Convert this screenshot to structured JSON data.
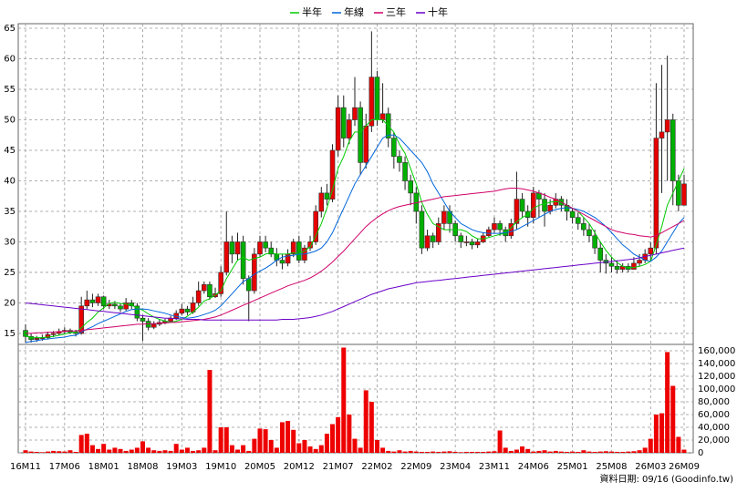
{
  "chart_data": {
    "type": "candlestick",
    "categories": [
      "16M11",
      null,
      null,
      null,
      null,
      null,
      null,
      "17M06",
      null,
      null,
      null,
      null,
      null,
      null,
      "18M01",
      null,
      null,
      null,
      null,
      null,
      null,
      "18M08",
      null,
      null,
      null,
      null,
      null,
      null,
      "19M03",
      null,
      null,
      null,
      null,
      null,
      null,
      "19M10",
      null,
      null,
      null,
      null,
      null,
      null,
      "20M05",
      null,
      null,
      null,
      null,
      null,
      null,
      "20M12",
      null,
      null,
      null,
      null,
      null,
      null,
      "21M07",
      null,
      null,
      null,
      null,
      null,
      null,
      "22M02",
      null,
      null,
      null,
      null,
      null,
      null,
      "22M09",
      null,
      null,
      null,
      null,
      null,
      null,
      "23M04",
      null,
      null,
      null,
      null,
      null,
      null,
      "23M11",
      null,
      null,
      null,
      null,
      null,
      null,
      "24M06",
      null,
      null,
      null,
      null,
      null,
      null,
      "25M01",
      null,
      null,
      null,
      null,
      null,
      null,
      "25M08",
      null,
      null,
      null,
      null,
      null,
      null,
      "26M03",
      null,
      null,
      null,
      null,
      null,
      "26M09"
    ],
    "open": [
      15.5,
      14.5,
      14,
      14.2,
      14.3,
      14.8,
      15,
      15.3,
      15.5,
      15.2,
      15,
      19.5,
      20.5,
      20,
      21,
      19.5,
      19.8,
      19.5,
      19,
      20,
      19.5,
      17.5,
      17,
      16,
      16.5,
      16.8,
      17,
      17.5,
      18.3,
      19,
      18.5,
      20,
      22,
      23,
      21,
      21.5,
      25,
      30,
      28,
      30,
      24,
      22,
      28,
      30,
      29,
      28,
      27,
      26.5,
      28,
      30,
      27,
      29,
      30,
      35,
      38,
      37,
      45,
      52,
      47,
      50,
      52,
      43,
      49,
      57,
      50,
      51,
      47,
      44,
      43,
      40,
      38,
      35,
      29,
      31,
      30,
      33,
      35,
      33,
      31,
      30,
      30,
      29.5,
      30,
      31,
      32,
      33,
      32,
      31,
      33,
      37,
      35,
      34,
      38,
      37,
      35,
      36,
      37,
      36,
      35,
      34,
      33,
      32,
      31,
      29,
      27,
      26.5,
      26,
      25.5,
      26,
      25.5,
      26.5,
      27,
      28,
      29,
      47,
      48,
      50,
      40,
      36
    ],
    "high": [
      16.5,
      15,
      14.6,
      14.8,
      15.2,
      15.4,
      15.8,
      16,
      15.8,
      15.6,
      21,
      22,
      21.5,
      21.5,
      21.2,
      20.5,
      20.3,
      20,
      20.8,
      20.5,
      20,
      18,
      17.5,
      17,
      17.3,
      17.4,
      17.9,
      18.8,
      19.8,
      19.5,
      21,
      23.5,
      23.5,
      23.5,
      22.5,
      26,
      35,
      31,
      31.5,
      31,
      24.5,
      29,
      31,
      31,
      30,
      29,
      28,
      28.8,
      30.5,
      31,
      29.5,
      31,
      36,
      39,
      39.5,
      46,
      54,
      54,
      51,
      57,
      53,
      51,
      64.5,
      58,
      56,
      52,
      48,
      45,
      44,
      41,
      39,
      36,
      32,
      31.5,
      34,
      36,
      36,
      33.5,
      31.5,
      31,
      30.5,
      30.5,
      31.5,
      32.5,
      34,
      33.5,
      32.5,
      33.8,
      41.5,
      38,
      36,
      39,
      38.5,
      38,
      37,
      38,
      37.5,
      37,
      35.5,
      34.8,
      34,
      33,
      32,
      30,
      28,
      27.5,
      27,
      26.5,
      26.5,
      27.5,
      28,
      28.8,
      30,
      56,
      59,
      60.5,
      51,
      41,
      41
    ],
    "low": [
      13.5,
      13.5,
      13.6,
      13.8,
      14,
      14.4,
      14.7,
      14.9,
      14.9,
      14.5,
      14.8,
      19,
      19.3,
      19.5,
      19,
      19,
      19,
      18.5,
      18.7,
      19,
      17,
      13.8,
      15.5,
      15.7,
      16.2,
      16.5,
      16.8,
      17.2,
      18,
      18,
      18.2,
      19.5,
      21.5,
      20.5,
      20.8,
      21,
      24.5,
      26.5,
      27,
      23,
      17,
      21.5,
      27.5,
      28.3,
      27.5,
      26,
      25.5,
      26,
      27.5,
      26.5,
      26.5,
      28.5,
      29.5,
      34,
      36,
      36.5,
      44,
      45.5,
      46,
      49,
      41,
      42,
      48,
      49,
      49.5,
      45.5,
      42,
      41.5,
      38.5,
      36,
      33,
      28,
      28.5,
      29,
      29.5,
      32,
      31.5,
      30,
      29,
      29.3,
      28.8,
      29,
      29.8,
      30.8,
      31.5,
      31,
      30,
      30.5,
      32,
      34,
      32.5,
      33,
      34,
      32.5,
      34.5,
      35.5,
      35,
      33.5,
      33,
      32,
      31,
      30,
      28,
      25,
      24.8,
      25,
      24.8,
      25,
      25,
      25.5,
      26,
      26.5,
      27,
      28,
      38,
      40,
      36,
      35,
      36
    ],
    "close": [
      14.5,
      14,
      14.2,
      14.3,
      14.8,
      15,
      15.3,
      15.5,
      15.2,
      15,
      19.5,
      20.5,
      20,
      21,
      19.5,
      19.8,
      19.5,
      19,
      20,
      19.5,
      17.5,
      17,
      16,
      16.5,
      16.8,
      17,
      17.5,
      18.3,
      19,
      18.5,
      20,
      22,
      23,
      21,
      21.5,
      25,
      30,
      28,
      30,
      24,
      22,
      28,
      30,
      29,
      28,
      27,
      26.5,
      28,
      30,
      27,
      29,
      30,
      35,
      38,
      37,
      45,
      52,
      47,
      50,
      52,
      43,
      49,
      57,
      50,
      51,
      47,
      44,
      43,
      40,
      38,
      35,
      29,
      31,
      30,
      33,
      35,
      33,
      31,
      30,
      30,
      29.5,
      30,
      31,
      32,
      33,
      32,
      31,
      33,
      37,
      35,
      34,
      38,
      37,
      35,
      36,
      37,
      36,
      35,
      34,
      33,
      32,
      31,
      29,
      27,
      26.5,
      26,
      25.5,
      26,
      25.5,
      26.5,
      27,
      28,
      29,
      47,
      48,
      50,
      40,
      36,
      39.5
    ],
    "up_color": "#e60000",
    "down_color": "#00b000",
    "ylim": [
      13.2,
      65.75
    ],
    "yticks": [
      15,
      20,
      25,
      30,
      35,
      40,
      45,
      50,
      55,
      60,
      65
    ],
    "grid": true,
    "series": [
      {
        "name": "半年",
        "color": "#00cc00",
        "values": [
          14.5,
          14.4,
          14.3,
          14.3,
          14.4,
          14.5,
          14.7,
          14.9,
          15.1,
          15.2,
          15.9,
          16.8,
          17.5,
          18.5,
          19.2,
          19.9,
          20.1,
          19.9,
          19.8,
          19.6,
          19.2,
          18.8,
          18.2,
          17.7,
          17.3,
          17,
          16.8,
          17,
          17.3,
          17.8,
          18.5,
          19.3,
          20.3,
          20.7,
          21.3,
          22,
          24,
          25.5,
          27,
          27.5,
          27,
          27.3,
          27.5,
          28,
          28.2,
          28,
          28,
          28,
          28.2,
          28,
          28.5,
          29.2,
          31,
          33,
          35.5,
          38.5,
          42,
          44,
          46.5,
          48,
          48,
          49,
          50,
          50,
          50,
          49,
          48,
          46,
          44.5,
          42,
          39.5,
          36.5,
          34.5,
          33,
          32.5,
          32,
          32,
          32,
          32,
          31.7,
          31,
          30.5,
          30.5,
          30.7,
          31,
          31.2,
          31.5,
          32.3,
          33.3,
          34,
          34.5,
          35.5,
          36,
          36.2,
          36.5,
          36.6,
          36.5,
          36,
          35.5,
          35,
          34,
          33,
          31.5,
          30,
          28.6,
          27.5,
          26.6,
          26,
          25.8,
          25.8,
          26,
          26.3,
          26.8,
          29.5,
          32.5,
          36,
          38,
          40,
          42
        ]
      },
      {
        "name": "年線",
        "color": "#0066dd",
        "values": [
          13.5,
          13.7,
          13.8,
          14,
          14.1,
          14.2,
          14.3,
          14.4,
          14.6,
          14.7,
          15.2,
          15.7,
          16.1,
          16.6,
          17,
          17.4,
          17.8,
          18.2,
          18.6,
          18.9,
          19,
          19,
          18.9,
          18.7,
          18.5,
          18.3,
          18,
          17.8,
          17.6,
          17.5,
          17.6,
          17.8,
          18.1,
          18.4,
          18.8,
          19.5,
          20.5,
          21.5,
          22.5,
          23.5,
          24,
          24.7,
          25.2,
          25.7,
          26.3,
          27,
          27.5,
          27.7,
          27.8,
          28,
          28,
          28.2,
          28.5,
          29,
          30,
          31.5,
          33.5,
          35.5,
          37.5,
          39.5,
          41,
          42.5,
          44,
          45.5,
          47,
          47.5,
          47.5,
          47,
          46,
          45,
          44,
          43,
          41.5,
          39.5,
          38,
          36.5,
          35,
          34,
          33,
          32.5,
          32,
          31.7,
          31.5,
          31.4,
          31.4,
          31.4,
          31.5,
          31.7,
          32,
          32.5,
          33,
          33.5,
          34,
          34.5,
          35,
          35.3,
          35.5,
          35.6,
          35.5,
          35.3,
          35,
          34.5,
          34,
          33.3,
          32.5,
          31.5,
          30.5,
          29.5,
          28.8,
          28,
          27.5,
          27,
          26.8,
          27.5,
          28.5,
          30,
          31.5,
          33,
          34
        ]
      },
      {
        "name": "三年",
        "color": "#d0006a",
        "values": [
          15,
          15,
          15.1,
          15.1,
          15.2,
          15.2,
          15.3,
          15.3,
          15.4,
          15.4,
          15.5,
          15.6,
          15.7,
          15.8,
          15.9,
          16,
          16.1,
          16.2,
          16.3,
          16.4,
          16.5,
          16.5,
          16.6,
          16.6,
          16.7,
          16.7,
          16.8,
          16.8,
          16.9,
          17,
          17.1,
          17.2,
          17.3,
          17.5,
          17.7,
          18,
          18.4,
          18.8,
          19.2,
          19.6,
          20,
          20.4,
          20.8,
          21.2,
          21.6,
          22,
          22.4,
          22.8,
          23.1,
          23.4,
          23.7,
          24.1,
          24.6,
          25.2,
          25.9,
          26.7,
          27.6,
          28.5,
          29.5,
          30.5,
          31.5,
          32.5,
          33.3,
          34,
          34.6,
          35.1,
          35.5,
          35.8,
          36,
          36.2,
          36.4,
          36.6,
          36.8,
          37,
          37.2,
          37.4,
          37.5,
          37.6,
          37.7,
          37.8,
          37.9,
          38,
          38.1,
          38.2,
          38.3,
          38.5,
          38.7,
          38.8,
          38.8,
          38.7,
          38.5,
          38.3,
          38,
          37.7,
          37.3,
          37,
          36.5,
          36,
          35.5,
          35,
          34.5,
          34,
          33.5,
          33,
          32.5,
          32,
          31.7,
          31.5,
          31.3,
          31.2,
          31,
          30.9,
          30.8,
          31,
          31.5,
          32,
          32.5,
          33,
          33.5
        ]
      },
      {
        "name": "十年",
        "color": "#6a00c8",
        "values": [
          20,
          19.9,
          19.8,
          19.7,
          19.6,
          19.5,
          19.4,
          19.3,
          19.2,
          19.1,
          19,
          18.9,
          18.8,
          18.7,
          18.6,
          18.5,
          18.4,
          18.3,
          18.2,
          18.1,
          18,
          17.9,
          17.8,
          17.7,
          17.6,
          17.5,
          17.5,
          17.4,
          17.4,
          17.3,
          17.3,
          17.3,
          17.2,
          17.2,
          17.2,
          17.2,
          17.2,
          17.2,
          17.2,
          17.2,
          17.2,
          17.2,
          17.2,
          17.2,
          17.2,
          17.2,
          17.3,
          17.3,
          17.3,
          17.4,
          17.5,
          17.6,
          17.8,
          18,
          18.3,
          18.6,
          19,
          19.4,
          19.8,
          20.2,
          20.6,
          21,
          21.4,
          21.7,
          22,
          22.3,
          22.5,
          22.7,
          22.9,
          23.1,
          23.3,
          23.4,
          23.5,
          23.6,
          23.7,
          23.8,
          23.9,
          24,
          24.1,
          24.2,
          24.3,
          24.4,
          24.5,
          24.6,
          24.7,
          24.8,
          24.9,
          25,
          25.1,
          25.2,
          25.3,
          25.4,
          25.5,
          25.6,
          25.7,
          25.8,
          25.9,
          26,
          26.1,
          26.2,
          26.3,
          26.4,
          26.5,
          26.6,
          26.7,
          26.8,
          26.9,
          27,
          27.1,
          27.2,
          27.4,
          27.6,
          27.8,
          28,
          28.2,
          28.4,
          28.6,
          28.8,
          29
        ]
      }
    ],
    "volume": {
      "color": "#ee0000",
      "values": [
        4000,
        2000,
        1500,
        1000,
        2000,
        3000,
        2500,
        2000,
        4000,
        1500,
        28000,
        30000,
        12000,
        6000,
        14000,
        5000,
        8000,
        6000,
        3000,
        5000,
        8000,
        18000,
        8000,
        4000,
        3000,
        4000,
        3000,
        14000,
        5000,
        8000,
        3000,
        4000,
        8000,
        130000,
        4000,
        40000,
        40000,
        12000,
        5000,
        12000,
        3000,
        22000,
        38000,
        37000,
        20000,
        8000,
        48000,
        50000,
        36000,
        15000,
        20000,
        10000,
        6000,
        12000,
        30000,
        45000,
        56000,
        165000,
        60000,
        22000,
        8000,
        98000,
        80000,
        20000,
        8000,
        3000,
        2000,
        4000,
        2000,
        3000,
        2000,
        1500,
        1500,
        2000,
        1500,
        2000,
        2500,
        1500,
        1000,
        1500,
        1500,
        1500,
        1500,
        2000,
        2500,
        35000,
        8000,
        3000,
        5000,
        10000,
        6000,
        2000,
        3000,
        4000,
        2000,
        3000,
        2000,
        1500,
        2000,
        1500,
        4000,
        2000,
        1500,
        2000,
        2500,
        2000,
        1500,
        1500,
        2000,
        2500,
        4000,
        8000,
        22000,
        60000,
        62000,
        158000,
        105000,
        25000,
        5000
      ],
      "ylim": [
        0,
        170000
      ],
      "yticks": [
        0,
        {
          "value": 20000,
          "label": "20,000"
        },
        {
          "value": 40000,
          "label": "40,000"
        },
        {
          "value": 60000,
          "label": "60,000"
        },
        {
          "value": 80000,
          "label": "80,000"
        },
        {
          "value": 100000,
          "label": "100,000"
        },
        {
          "value": 120000,
          "label": "120,000"
        },
        {
          "value": 140000,
          "label": "140,000"
        },
        {
          "value": 160000,
          "label": "160,000"
        }
      ]
    },
    "note": "資料日期: 09/16 (Goodinfo.tw)"
  }
}
